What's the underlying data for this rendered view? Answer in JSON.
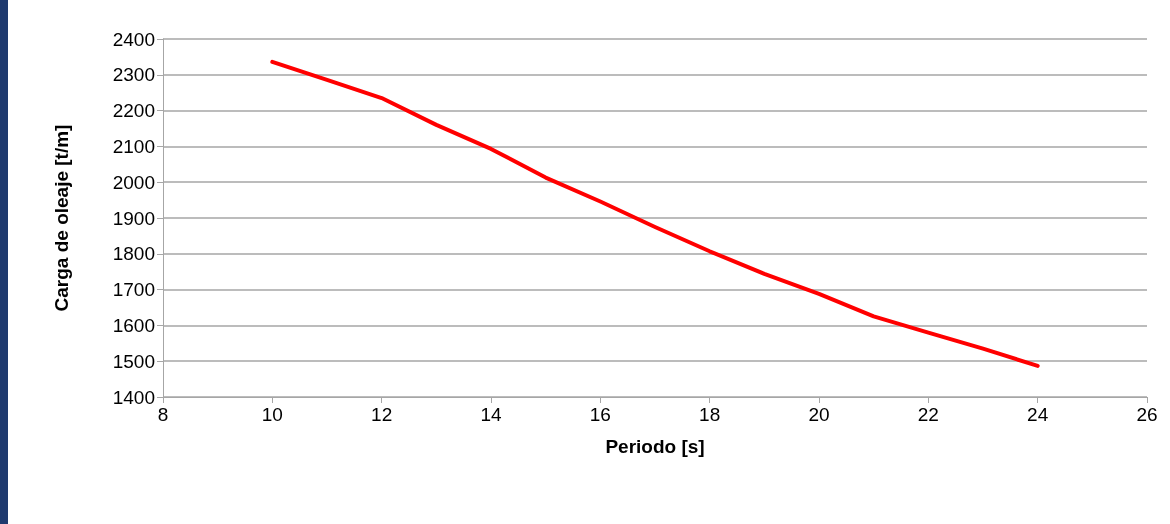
{
  "chart_data": {
    "type": "line",
    "xlabel": "Periodo [s]",
    "ylabel": "Carga de oleaje [t/m]",
    "x": [
      10,
      11,
      12,
      13,
      14,
      15,
      16,
      17,
      18,
      19,
      20,
      21,
      22,
      23,
      24
    ],
    "series": [
      {
        "color": "#ff0000",
        "values": [
          2336,
          2286,
          2235,
          2160,
          2093,
          2013,
          1946,
          1875,
          1807,
          1744,
          1688,
          1625,
          1580,
          1535,
          1487
        ]
      }
    ],
    "xlim": [
      8,
      26
    ],
    "xticks": [
      8,
      10,
      12,
      14,
      16,
      18,
      20,
      22,
      24,
      26
    ],
    "ylim": [
      1400,
      2400
    ],
    "yticks": [
      1400,
      1500,
      1600,
      1700,
      1800,
      1900,
      2000,
      2100,
      2200,
      2300,
      2400
    ],
    "grid": "y",
    "marker": "none",
    "line_style": "solid"
  }
}
